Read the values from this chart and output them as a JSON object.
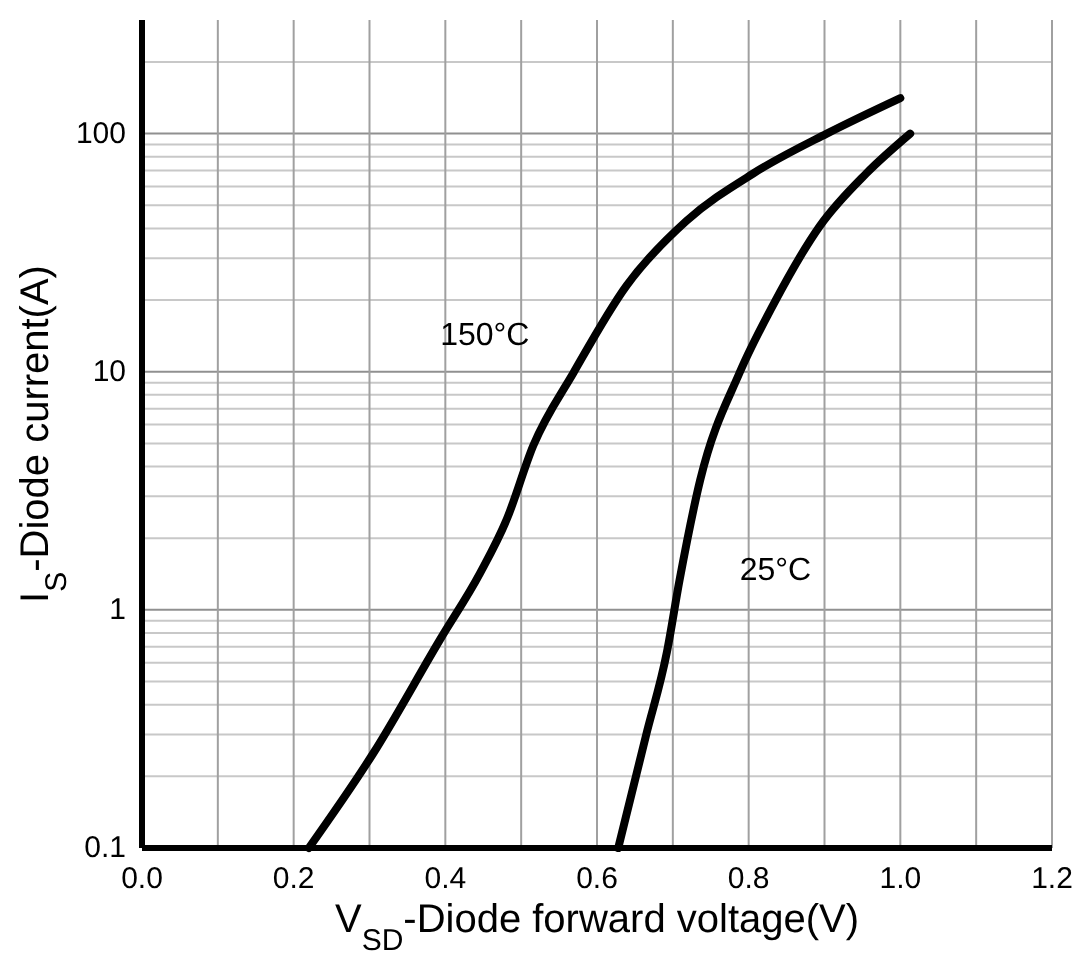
{
  "chart_data": {
    "type": "line",
    "xlabel": "V$_{SD}$-Diode forward voltage(V)",
    "ylabel": "I$_{S}$-Diode current(A)",
    "log": "y",
    "grid": true,
    "marker": "none",
    "line_style": "solid",
    "xlim": [
      0,
      1.2
    ],
    "xticks": [
      {
        "value": 0,
        "label": "0.0"
      },
      0.2,
      0.4,
      0.6,
      0.8,
      {
        "value": 1,
        "label": "1.0"
      },
      1.2
    ],
    "ylim": [
      0.1,
      300
    ],
    "yticks": [
      0.1,
      1,
      10,
      100
    ],
    "series": [
      {
        "name": "150°C",
        "color": "#000000",
        "x": [
          0.22,
          0.305,
          0.393,
          0.446,
          0.481,
          0.516,
          0.569,
          0.639,
          0.718,
          0.806,
          0.903,
          1.0
        ],
        "values": [
          0.1,
          0.25,
          0.75,
          1.43,
          2.4,
          4.9,
          9.9,
          23,
          43,
          68,
          100,
          141
        ]
      },
      {
        "name": "25°C",
        "color": "#000000",
        "x": [
          0.628,
          0.665,
          0.692,
          0.709,
          0.736,
          0.788,
          0.832,
          0.894,
          0.955,
          1.013
        ],
        "values": [
          0.1,
          0.3,
          0.66,
          1.34,
          3.5,
          9.9,
          19,
          41,
          68,
          100
        ]
      }
    ]
  }
}
